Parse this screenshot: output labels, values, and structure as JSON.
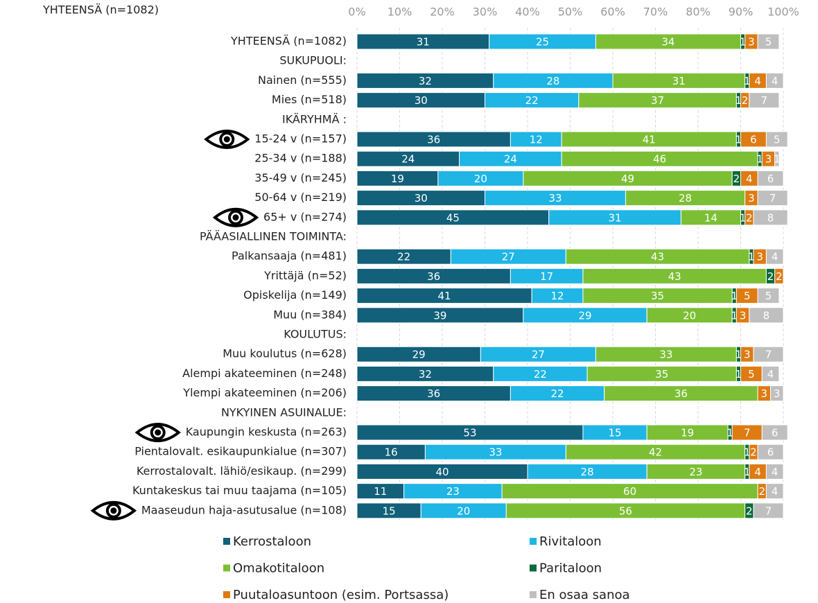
{
  "chart_data": {
    "type": "stacked-bar-horizontal",
    "title": "YHTEENSÄ (n=1082)",
    "categories": [
      "YHTEENSÄ (n=1082)",
      "SUKUPUOLI:",
      "Nainen (n=555)",
      "Mies (n=518)",
      "IKÄRYHMÄ :",
      "15-24 v (n=157)",
      "25-34 v (n=188)",
      "35-49 v (n=245)",
      "50-64 v (n=219)",
      "65+ v (n=274)",
      "PÄÄASIALLINEN TOIMINTA:",
      "Palkansaaja (n=481)",
      "Yrittäjä (n=52)",
      "Opiskelija (n=149)",
      "Muu (n=384)",
      "KOULUTUS:",
      "Muu koulutus (n=628)",
      "Alempi akateeminen (n=248)",
      "Ylempi akateeminen (n=206)",
      "NYKYINEN ASUINALUE:",
      "Kaupungin keskusta (n=263)",
      "Pientalovalt. esikaupunkialue (n=307)",
      "Kerrostalovalt. lähiö/esikaup. (n=299)",
      "Kuntakeskus tai muu taajama (n=105)",
      "Maaseudun haja-asutusalue (n=108)"
    ],
    "series": [
      {
        "name": "Kerrostaloon",
        "color": "#12607a",
        "values": [
          31,
          null,
          32,
          30,
          null,
          36,
          24,
          19,
          30,
          45,
          null,
          22,
          36,
          41,
          39,
          null,
          29,
          32,
          36,
          null,
          53,
          16,
          40,
          11,
          15
        ]
      },
      {
        "name": "Rivitaloon",
        "color": "#1fb5e5",
        "values": [
          25,
          null,
          28,
          22,
          null,
          12,
          24,
          20,
          33,
          31,
          null,
          27,
          17,
          12,
          29,
          null,
          27,
          22,
          22,
          null,
          15,
          33,
          28,
          23,
          20
        ]
      },
      {
        "name": "Omakotitaloon",
        "color": "#7cbf35",
        "values": [
          34,
          null,
          31,
          37,
          null,
          41,
          46,
          49,
          28,
          14,
          null,
          43,
          43,
          35,
          20,
          null,
          33,
          35,
          36,
          null,
          19,
          42,
          23,
          60,
          56
        ]
      },
      {
        "name": "Paritaloon",
        "color": "#0b6b3a",
        "values": [
          1,
          null,
          1,
          1,
          null,
          1,
          1,
          2,
          0,
          1,
          null,
          1,
          2,
          1,
          1,
          null,
          1,
          1,
          0,
          null,
          1,
          1,
          1,
          0,
          2
        ]
      },
      {
        "name": "Puutaloasuntoon (esim. Portsassa)",
        "color": "#de7b12",
        "values": [
          3,
          null,
          4,
          2,
          null,
          6,
          3,
          4,
          3,
          2,
          null,
          3,
          2,
          5,
          3,
          null,
          3,
          5,
          3,
          null,
          7,
          2,
          4,
          2,
          0
        ]
      },
      {
        "name": "En osaa sanoa",
        "color": "#bfbfbf",
        "values": [
          5,
          null,
          4,
          7,
          null,
          5,
          1,
          6,
          7,
          8,
          null,
          4,
          0,
          5,
          8,
          null,
          7,
          4,
          3,
          null,
          6,
          6,
          4,
          4,
          7
        ]
      }
    ],
    "xlim": [
      0,
      100
    ],
    "xticks": [
      {
        "value": 0,
        "label": "0%"
      },
      {
        "value": 10,
        "label": "10%"
      },
      {
        "value": 20,
        "label": "20%"
      },
      {
        "value": 30,
        "label": "30%"
      },
      {
        "value": 40,
        "label": "40%"
      },
      {
        "value": 50,
        "label": "50%"
      },
      {
        "value": 60,
        "label": "60%"
      },
      {
        "value": 70,
        "label": "70%"
      },
      {
        "value": 80,
        "label": "80%"
      },
      {
        "value": 90,
        "label": "90%"
      },
      {
        "value": 100,
        "label": "100%"
      }
    ],
    "grid": true
  }
}
